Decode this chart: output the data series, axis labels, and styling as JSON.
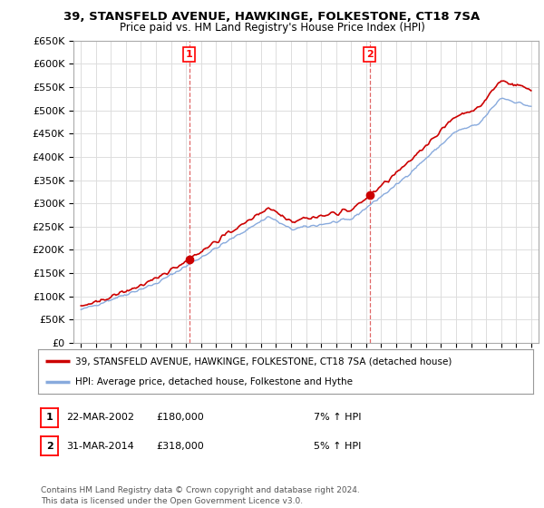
{
  "title1": "39, STANSFELD AVENUE, HAWKINGE, FOLKESTONE, CT18 7SA",
  "title2": "Price paid vs. HM Land Registry's House Price Index (HPI)",
  "ylabel_ticks": [
    "£0",
    "£50K",
    "£100K",
    "£150K",
    "£200K",
    "£250K",
    "£300K",
    "£350K",
    "£400K",
    "£450K",
    "£500K",
    "£550K",
    "£600K",
    "£650K"
  ],
  "ytick_values": [
    0,
    50000,
    100000,
    150000,
    200000,
    250000,
    300000,
    350000,
    400000,
    450000,
    500000,
    550000,
    600000,
    650000
  ],
  "background_color": "#ffffff",
  "grid_color": "#dddddd",
  "line1_color": "#cc0000",
  "line2_color": "#88aadd",
  "vline_color": "#cc0000",
  "marker_color": "#cc0000",
  "event1_x": 2002.22,
  "event1_y": 180000,
  "event2_x": 2014.25,
  "event2_y": 318000,
  "legend_line1": "39, STANSFELD AVENUE, HAWKINGE, FOLKESTONE, CT18 7SA (detached house)",
  "legend_line2": "HPI: Average price, detached house, Folkestone and Hythe",
  "table_rows": [
    {
      "num": "1",
      "date": "22-MAR-2002",
      "price": "£180,000",
      "change": "7% ↑ HPI"
    },
    {
      "num": "2",
      "date": "31-MAR-2014",
      "price": "£318,000",
      "change": "5% ↑ HPI"
    }
  ],
  "footer": "Contains HM Land Registry data © Crown copyright and database right 2024.\nThis data is licensed under the Open Government Licence v3.0.",
  "xlim": [
    1994.5,
    2025.5
  ],
  "ylim": [
    0,
    650000
  ],
  "xticks": [
    1995,
    1996,
    1997,
    1998,
    1999,
    2000,
    2001,
    2002,
    2003,
    2004,
    2005,
    2006,
    2007,
    2008,
    2009,
    2010,
    2011,
    2012,
    2013,
    2014,
    2015,
    2016,
    2017,
    2018,
    2019,
    2020,
    2021,
    2022,
    2023,
    2024,
    2025
  ]
}
